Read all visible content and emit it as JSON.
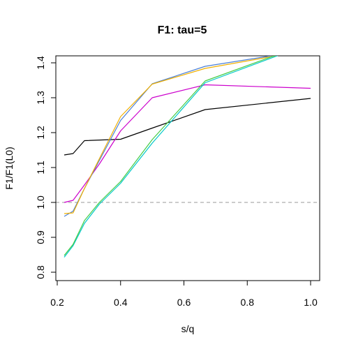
{
  "chart_data": {
    "type": "line",
    "title": "F1: tau=5",
    "xlabel": "s/q",
    "ylabel": "F1/F1(L0)",
    "xlim": [
      0.2,
      1.0
    ],
    "ylim": [
      0.8,
      1.4
    ],
    "xticks": [
      "0.2",
      "0.4",
      "0.6",
      "0.8",
      "1.0"
    ],
    "yticks": [
      "0.8",
      "0.9",
      "1.0",
      "1.1",
      "1.2",
      "1.3",
      "1.4"
    ],
    "reference_line": {
      "y": 1.0,
      "style": "dashed",
      "color": "#999999"
    },
    "series": [
      {
        "color": "#000000",
        "x": [
          0.222,
          0.25,
          0.286,
          0.4,
          0.5,
          0.667,
          1.0
        ],
        "y": [
          1.136,
          1.14,
          1.177,
          1.181,
          1.213,
          1.266,
          1.298
        ]
      },
      {
        "color": "#cc00cc",
        "x": [
          0.222,
          0.25,
          0.286,
          0.333,
          0.4,
          0.5,
          0.667,
          1.0
        ],
        "y": [
          1.0,
          1.006,
          1.05,
          1.11,
          1.205,
          1.3,
          1.337,
          1.327
        ]
      },
      {
        "color": "#4a7fd6",
        "x": [
          0.222,
          0.25,
          0.286,
          0.333,
          0.4,
          0.5,
          0.667,
          0.909,
          1.0
        ],
        "y": [
          0.96,
          0.975,
          1.04,
          1.12,
          1.235,
          1.34,
          1.39,
          1.425,
          1.43
        ]
      },
      {
        "color": "#f0b000",
        "x": [
          0.222,
          0.25,
          0.286,
          0.333,
          0.4,
          0.5,
          0.667,
          0.909,
          1.0
        ],
        "y": [
          0.968,
          0.97,
          1.04,
          1.125,
          1.246,
          1.339,
          1.384,
          1.423,
          1.43
        ]
      },
      {
        "color": "#00c8c8",
        "x": [
          0.222,
          0.25,
          0.286,
          0.333,
          0.4,
          0.5,
          0.667,
          0.909
        ],
        "y": [
          0.843,
          0.876,
          0.94,
          0.995,
          1.055,
          1.17,
          1.343,
          1.425
        ]
      },
      {
        "color": "#44cc44",
        "x": [
          0.222,
          0.25,
          0.286,
          0.333,
          0.4,
          0.5,
          0.667,
          0.909
        ],
        "y": [
          0.848,
          0.88,
          0.948,
          1.0,
          1.06,
          1.18,
          1.348,
          1.428
        ]
      }
    ]
  }
}
